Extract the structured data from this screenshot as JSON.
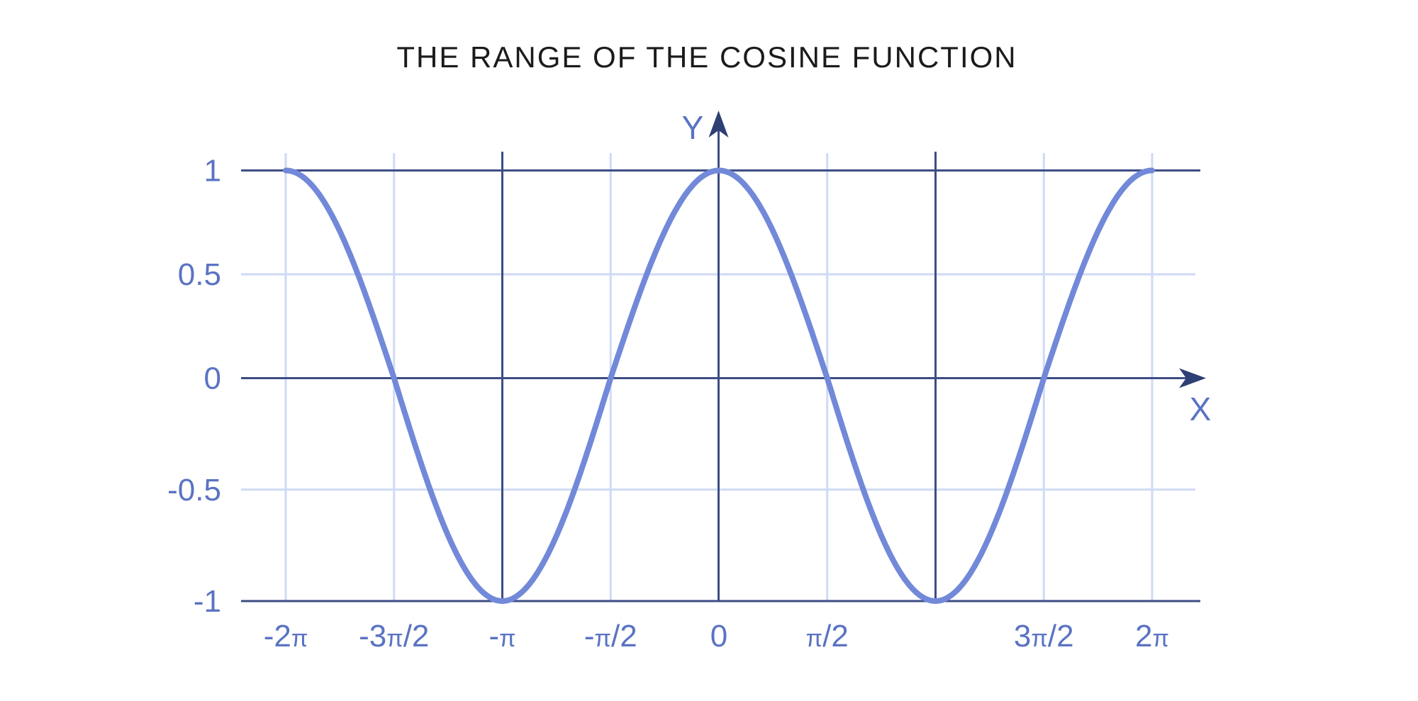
{
  "title": "THE RANGE OF THE COSINE FUNCTION",
  "colors": {
    "background": "#ffffff",
    "title_text": "#1b1b1b",
    "curve": "#7289d9",
    "axis_line": "#3d4d84",
    "arrow": "#2e3f74",
    "grid_light": "#cfdaf5",
    "tick_label": "#5a73c3"
  },
  "chart_data": {
    "type": "line",
    "title": "THE RANGE OF THE COSINE FUNCTION",
    "function": "y = cos(x)",
    "xlabel": "X",
    "ylabel": "Y",
    "x_domain": [
      "-2π",
      "2π"
    ],
    "ylim": [
      -1,
      1
    ],
    "grid": true,
    "legend": "none",
    "x_ticks": [
      {
        "pos_half_pi": -4,
        "label": "-2π",
        "line": "light"
      },
      {
        "pos_half_pi": -3,
        "label": "-3π/2",
        "line": "light"
      },
      {
        "pos_half_pi": -2,
        "label": "-π",
        "line": "dark"
      },
      {
        "pos_half_pi": -1,
        "label": "-π/2",
        "line": "light"
      },
      {
        "pos_half_pi": 0,
        "label": "0",
        "line": "axis"
      },
      {
        "pos_half_pi": 1,
        "label": "π/2",
        "line": "light"
      },
      {
        "pos_half_pi": 2,
        "label": "",
        "line": "dark"
      },
      {
        "pos_half_pi": 3,
        "label": "3π/2",
        "line": "light"
      },
      {
        "pos_half_pi": 4,
        "label": "2π",
        "line": "light"
      }
    ],
    "y_ticks": [
      {
        "value": 1,
        "label": "1",
        "line": "dark",
        "emphasized_range_bound": true
      },
      {
        "value": 0.5,
        "label": "0.5",
        "line": "light",
        "emphasized_range_bound": false
      },
      {
        "value": 0,
        "label": "0",
        "line": "axis",
        "emphasized_range_bound": false
      },
      {
        "value": -0.5,
        "label": "-0.5",
        "line": "light",
        "emphasized_range_bound": false
      },
      {
        "value": -1,
        "label": "-1",
        "line": "dark",
        "emphasized_range_bound": true
      }
    ],
    "key_points": [
      {
        "x": "-2π",
        "y": 1
      },
      {
        "x": "-3π/2",
        "y": 0
      },
      {
        "x": "-π",
        "y": -1
      },
      {
        "x": "-π/2",
        "y": 0
      },
      {
        "x": "0",
        "y": 1
      },
      {
        "x": "π/2",
        "y": 0
      },
      {
        "x": "π",
        "y": -1
      },
      {
        "x": "3π/2",
        "y": 0
      },
      {
        "x": "2π",
        "y": 1
      }
    ]
  }
}
